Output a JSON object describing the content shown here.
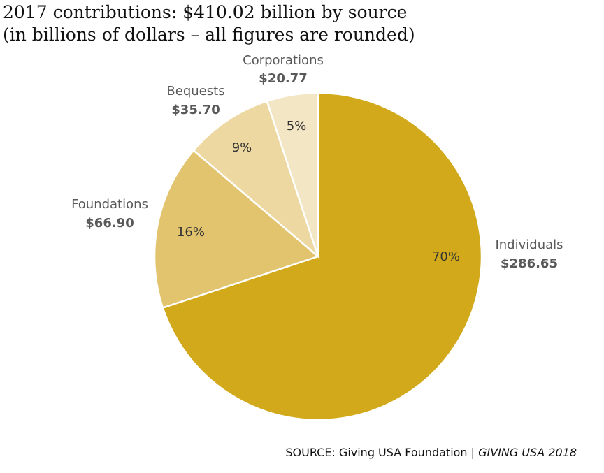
{
  "chart_data": {
    "type": "pie",
    "title": "2017 contributions: $410.02 billion by source",
    "subtitle": "(in billions of dollars – all figures are rounded)",
    "categories": [
      "Individuals",
      "Foundations",
      "Bequests",
      "Corporations"
    ],
    "values": [
      286.65,
      66.9,
      35.7,
      20.77
    ],
    "value_labels": [
      "$286.65",
      "$66.90",
      "$35.70",
      "$20.77"
    ],
    "percent_labels": [
      "70%",
      "16%",
      "9%",
      "5%"
    ],
    "colors": [
      "#d1a91b",
      "#e2c46f",
      "#ecd8a0",
      "#f3e6c4"
    ],
    "source": "SOURCE: Giving USA Foundation |",
    "source_publication": "GIVING USA 2018"
  }
}
